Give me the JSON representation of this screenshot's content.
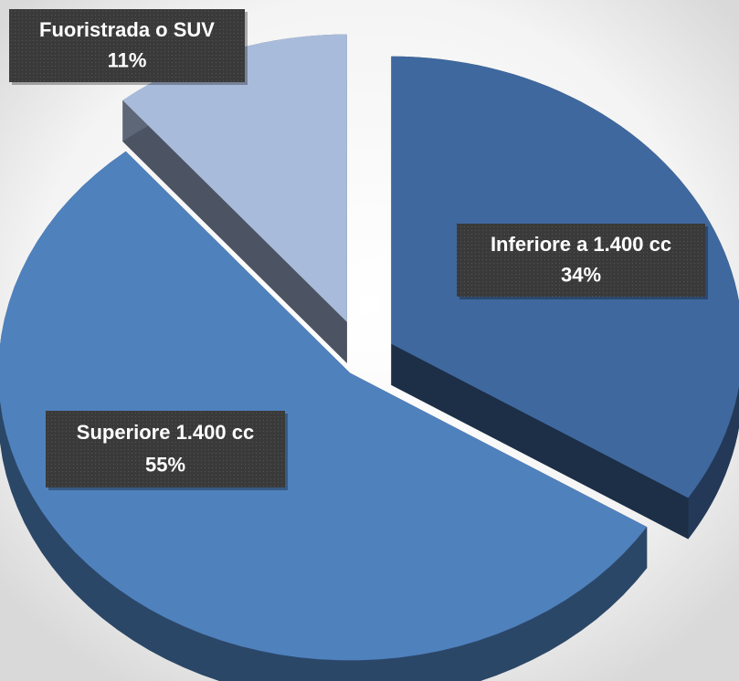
{
  "chart_data": {
    "type": "pie",
    "categories": [
      "Inferiore a 1.400 cc",
      "Superiore 1.400 cc",
      "Fuoristrada o SUV"
    ],
    "values": [
      34,
      55,
      11
    ],
    "value_labels": [
      "34%",
      "55%",
      "11%"
    ],
    "colors": [
      "#3f689e",
      "#4f81bd",
      "#a9bbdb"
    ]
  }
}
